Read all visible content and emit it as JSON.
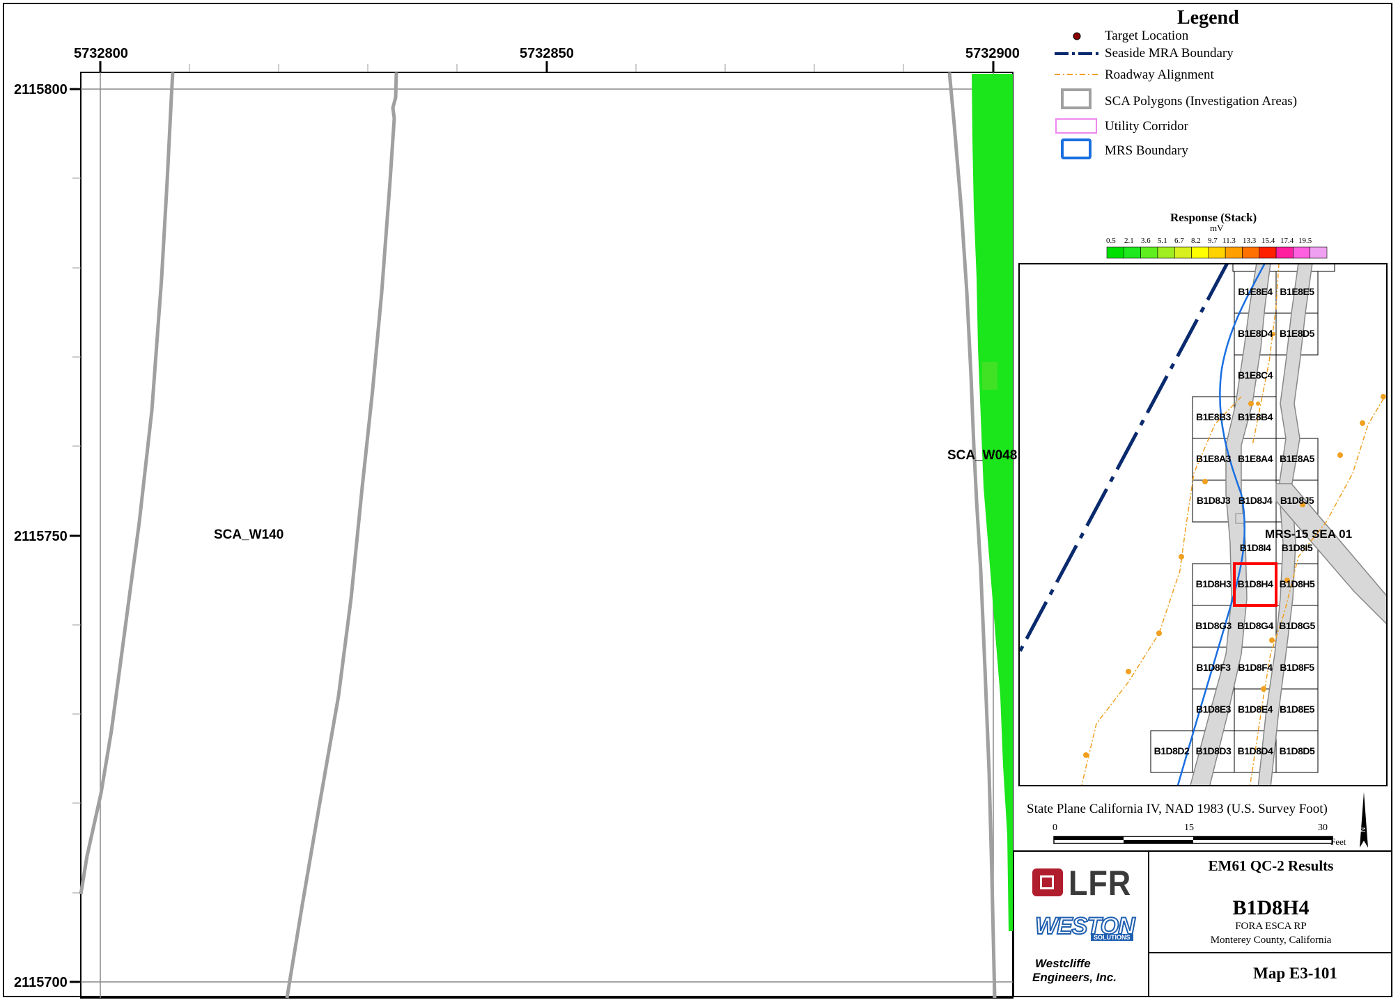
{
  "map": {
    "x_ticks": [
      "5732800",
      "5732850",
      "5732900"
    ],
    "y_ticks": [
      "2115800",
      "2115750",
      "2115700"
    ],
    "area_labels": {
      "sca_w140": "SCA_W140",
      "sca_w048": "SCA_W048"
    }
  },
  "legend": {
    "title": "Legend",
    "items": [
      {
        "label": "Target Location",
        "icon": "target-dot-icon",
        "color": "#8b0000"
      },
      {
        "label": "Seaside MRA Boundary",
        "icon": "dash-dot-line-icon",
        "color": "#0a2a6e"
      },
      {
        "label": "Roadway Alignment",
        "icon": "dash-dot-line-icon",
        "color": "#f0a020"
      },
      {
        "label": "SCA Polygons (Investigation Areas)",
        "icon": "gray-rect-icon",
        "color": "#a0a0a0"
      },
      {
        "label": "Utility Corridor",
        "icon": "pink-rect-icon",
        "color": "#ee88ee"
      },
      {
        "label": "MRS Boundary",
        "icon": "blue-rect-icon",
        "color": "#1a6fe0"
      }
    ]
  },
  "color_scale": {
    "title": "Response (Stack)",
    "unit": "mV",
    "ticks": [
      "0.5",
      "2.1",
      "3.6",
      "5.1",
      "6.7",
      "8.2",
      "9.7",
      "11.3",
      "13.3",
      "15.4",
      "17.4",
      "19.5"
    ],
    "colors": [
      "#00e000",
      "#20e820",
      "#60ee20",
      "#a0ee20",
      "#d8f020",
      "#ffff00",
      "#ffd200",
      "#ffa000",
      "#ff7000",
      "#ff2000",
      "#ff20a0",
      "#ff60e0",
      "#f0a0f0"
    ]
  },
  "inset": {
    "mrs_label": "MRS-15 SEA 01",
    "selected_cell": "B1D8H4",
    "cells": [
      "B1E8E4",
      "B1E8E5",
      "B1E8D4",
      "B1E8D5",
      "B1E8C4",
      "B1E8B3",
      "B1E8B4",
      "B1E8A3",
      "B1E8A4",
      "B1E8A5",
      "B1D8J3",
      "B1D8J4",
      "B1D8J5",
      "B1D8I4",
      "B1D8I5",
      "B1D8H3",
      "B1D8H4",
      "B1D8H5",
      "B1D8G3",
      "B1D8G4",
      "B1D8G5",
      "B1D8F3",
      "B1D8F4",
      "B1D8F5",
      "B1D8E3",
      "B1D8E4",
      "B1D8E5",
      "B1D8D2",
      "B1D8D3",
      "B1D8D4",
      "B1D8D5"
    ]
  },
  "projection": "State Plane California IV, NAD 1983 (U.S. Survey Foot)",
  "scale_bar": {
    "ticks": [
      "0",
      "15",
      "30"
    ],
    "unit": "Feet"
  },
  "title_block": {
    "company_logo": "LFR",
    "partner_logo": "WESTON",
    "partner_sub": "SOLUTIONS",
    "firm_line1": "Westcliffe",
    "firm_line2": "Engineers, Inc.",
    "report_title": "EM61 QC-2 Results",
    "grid_id": "B1D8H4",
    "project": "FORA ESCA RP",
    "location": "Monterey County, California",
    "map_number": "Map E3-101"
  }
}
